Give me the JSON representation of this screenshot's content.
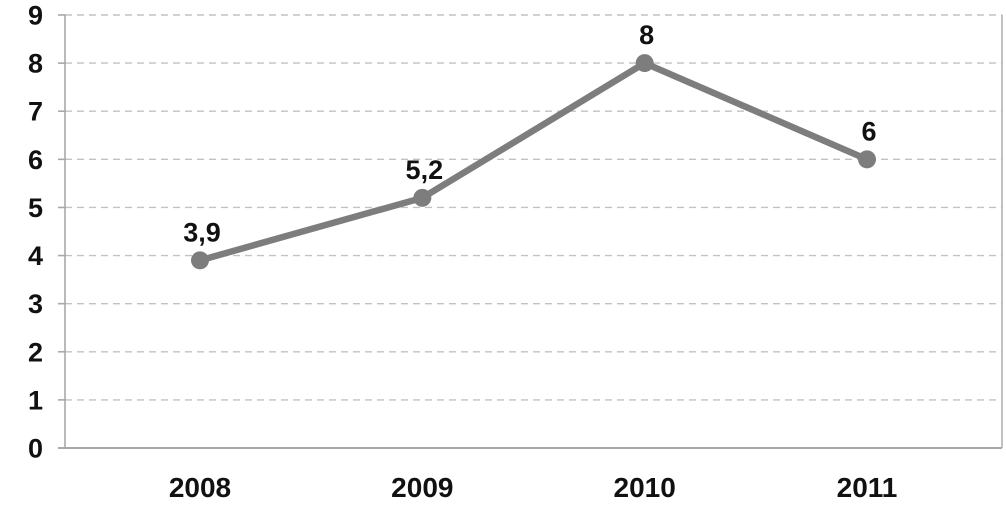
{
  "chart_data": {
    "type": "line",
    "title": "",
    "xlabel": "",
    "ylabel": "",
    "categories": [
      "2008",
      "2009",
      "2010",
      "2011"
    ],
    "series": [
      {
        "name": "series-1",
        "values": [
          3.9,
          5.2,
          8,
          6
        ],
        "point_labels": [
          "3,9",
          "5,2",
          "8",
          "6"
        ]
      }
    ],
    "ylim": [
      0,
      9
    ],
    "ytick_step": 1,
    "ytick_labels": [
      "0",
      "1",
      "2",
      "3",
      "4",
      "5",
      "6",
      "7",
      "8",
      "9"
    ],
    "grid": "horizontal-dashed",
    "legend": "none",
    "colors": {
      "line": "#7d7d7d",
      "marker": "#7d7d7d",
      "gridline": "#c2c2c2",
      "axis": "#a8a8a8",
      "text": "#111111"
    }
  }
}
